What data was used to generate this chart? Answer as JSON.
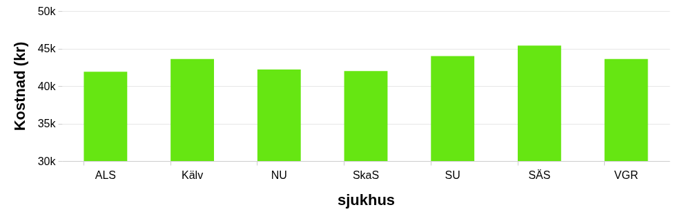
{
  "chart_data": {
    "type": "bar",
    "xlabel": "sjukhus",
    "ylabel": "Kostnad (kr)",
    "categories": [
      "ALS",
      "Kälv",
      "NU",
      "SkaS",
      "SU",
      "SÄS",
      "VGR"
    ],
    "values": [
      41.9,
      43.6,
      42.2,
      42.0,
      44.0,
      45.4,
      43.6
    ],
    "color": "#66e612",
    "ylim": [
      30,
      50
    ],
    "yticks": [
      {
        "value": 30,
        "label": "30k"
      },
      {
        "value": 35,
        "label": "35k"
      },
      {
        "value": 40,
        "label": "40k"
      },
      {
        "value": 45,
        "label": "45k"
      },
      {
        "value": 50,
        "label": "50k"
      }
    ],
    "grid": "y"
  }
}
